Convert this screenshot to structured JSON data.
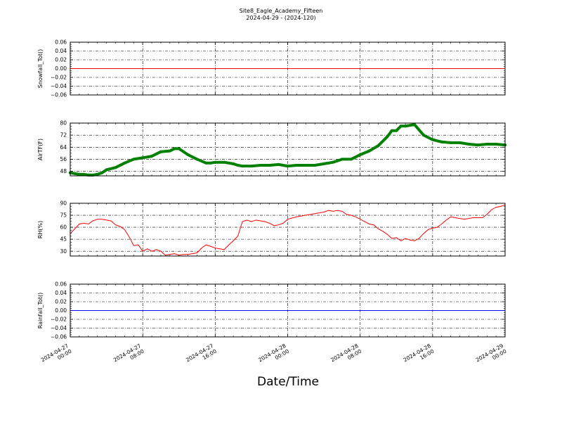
{
  "figure": {
    "title_line1": "Site8_Eagle_Academy_Fifteen",
    "title_line2": "2024-04-29 - (2024-120)",
    "xlabel": "Date/Time"
  },
  "chart_data": [
    {
      "type": "line",
      "ylabel": "Snowfall_Tot()",
      "ylim": [
        -0.06,
        0.06
      ],
      "yticks": [
        "0.06",
        "0.04",
        "0.02",
        "0.00",
        "−0.02",
        "−0.04",
        "−0.06"
      ],
      "ytick_values": [
        0.06,
        0.04,
        0.02,
        0.0,
        -0.02,
        -0.04,
        -0.06
      ],
      "grid": true,
      "series": [
        {
          "color": "#ff0000",
          "style": "line",
          "x": [
            0,
            48
          ],
          "y": [
            0.0,
            0.0
          ]
        }
      ]
    },
    {
      "type": "line",
      "ylabel": "AirTF(F)",
      "ylim": [
        45,
        80
      ],
      "yticks": [
        "80",
        "72",
        "64",
        "56",
        "48"
      ],
      "ytick_values": [
        80,
        72,
        64,
        56,
        48
      ],
      "grid": true,
      "series": [
        {
          "color": "#008000",
          "style": "markers",
          "x": [
            0,
            0.5,
            1,
            1.5,
            2,
            2.5,
            3,
            3.5,
            4,
            5,
            6,
            7,
            8,
            9,
            10,
            11,
            11.5,
            12,
            13,
            14,
            15,
            15.5,
            16,
            17,
            18,
            18.5,
            19,
            20,
            21,
            22,
            23,
            24,
            25,
            26,
            27,
            28,
            29,
            29.5,
            30,
            31,
            32,
            33,
            34,
            35,
            35.5,
            36,
            36.5,
            37,
            38,
            39,
            40,
            41,
            42,
            43,
            44,
            45,
            46,
            47,
            48
          ],
          "y": [
            47,
            46.5,
            46,
            46,
            45.5,
            45.5,
            46,
            47,
            49,
            50.5,
            53.5,
            56,
            57,
            58,
            61,
            61.5,
            63,
            63,
            59,
            56,
            53.5,
            53.5,
            54,
            54,
            53,
            52,
            51.5,
            51.5,
            52,
            52,
            52.5,
            51.5,
            52,
            52,
            52,
            53,
            54,
            55,
            56,
            56,
            59,
            61.5,
            65,
            71,
            75,
            75,
            78,
            78,
            79,
            72,
            69,
            67.5,
            67,
            67,
            66,
            65.5,
            66,
            66,
            65.5
          ]
        }
      ]
    },
    {
      "type": "line",
      "ylabel": "RH(%)",
      "ylim": [
        24,
        90
      ],
      "yticks": [
        "90",
        "75",
        "60",
        "45",
        "30"
      ],
      "ytick_values": [
        90,
        75,
        60,
        45,
        30
      ],
      "grid": true,
      "series": [
        {
          "color": "#ff0000",
          "style": "line",
          "x": [
            0,
            0.5,
            1,
            1.5,
            2,
            2.5,
            3,
            3.5,
            4,
            4.5,
            5,
            5.5,
            6,
            6.5,
            7,
            7.5,
            8,
            8.5,
            9,
            9.5,
            10,
            10.5,
            11,
            11.5,
            12,
            12.5,
            13,
            13.5,
            14,
            14.5,
            15,
            15.5,
            16,
            16.5,
            17,
            17.5,
            18,
            18.5,
            19,
            19.5,
            20,
            20.5,
            21,
            21.5,
            22,
            22.5,
            23,
            23.5,
            24,
            25,
            26,
            27,
            28,
            28.5,
            29,
            29.5,
            30,
            30.5,
            31,
            31.5,
            32,
            32.5,
            33,
            33.5,
            34,
            34.5,
            35,
            35.5,
            36,
            36.5,
            37,
            37.5,
            38,
            38.5,
            39,
            39.5,
            40,
            40.5,
            41,
            41.5,
            42,
            42.5,
            43,
            43.5,
            44,
            44.5,
            45,
            45.5,
            46,
            46.5,
            47,
            47.5,
            48
          ],
          "y": [
            52,
            58,
            64,
            65,
            64,
            68,
            70,
            70,
            69,
            68,
            63,
            61,
            57,
            48,
            37,
            38,
            30,
            33,
            30,
            32,
            30,
            25,
            26,
            27,
            25,
            26,
            26,
            27,
            28,
            34,
            38,
            36,
            34,
            33,
            32,
            38,
            43,
            49,
            67,
            69,
            67,
            69,
            68,
            67,
            65,
            62,
            63,
            65,
            70,
            73,
            75,
            77,
            79,
            81,
            80,
            81,
            80,
            76,
            75,
            73,
            70,
            67,
            64,
            63,
            58,
            55,
            51,
            46,
            47,
            43,
            46,
            44,
            43,
            46,
            52,
            57,
            59,
            60,
            64,
            69,
            73,
            72,
            71,
            70,
            71,
            72,
            72,
            72,
            76,
            82,
            85,
            86,
            88
          ]
        }
      ]
    },
    {
      "type": "line",
      "ylabel": "Rainfall_Tot()",
      "ylim": [
        -0.06,
        0.06
      ],
      "yticks": [
        "0.06",
        "0.04",
        "0.02",
        "0.00",
        "−0.02",
        "−0.04",
        "−0.06"
      ],
      "ytick_values": [
        0.06,
        0.04,
        0.02,
        0.0,
        -0.02,
        -0.04,
        -0.06
      ],
      "grid": true,
      "series": [
        {
          "color": "#0000ff",
          "style": "line",
          "x": [
            0,
            48
          ],
          "y": [
            0.0,
            0.0
          ]
        }
      ]
    }
  ],
  "x_axis": {
    "xlim": [
      0,
      48
    ],
    "ticks": [
      0,
      8,
      16,
      24,
      32,
      40,
      48
    ],
    "tick_labels": [
      {
        "date": "2024-04-27",
        "time": "00:00"
      },
      {
        "date": "2024-04-27",
        "time": "08:00"
      },
      {
        "date": "2024-04-27",
        "time": "16:00"
      },
      {
        "date": "2024-04-28",
        "time": "00:00"
      },
      {
        "date": "2024-04-28",
        "time": "08:00"
      },
      {
        "date": "2024-04-28",
        "time": "16:00"
      },
      {
        "date": "2024-04-29",
        "time": "00:00"
      }
    ]
  }
}
